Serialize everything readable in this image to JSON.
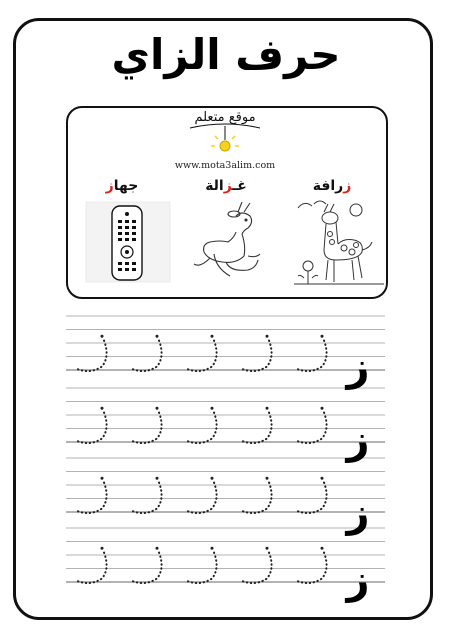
{
  "title": "حرف الزاي",
  "logo": {
    "text": "موقع متعلم",
    "icon": "lightbulb-icon",
    "url": "www.mota3alim.com"
  },
  "words": [
    {
      "name": "giraffe",
      "rest": "رافة",
      "letter": "ز",
      "image": "giraffe-drawing"
    },
    {
      "name": "gazelle",
      "before": "غـ",
      "letter": "ز",
      "after": "الة",
      "image": "gazelle-drawing"
    },
    {
      "name": "device",
      "before": "جها",
      "letter": "ز",
      "image": "remote-control-drawing"
    }
  ],
  "practice_letter": "ز",
  "practice_rows": 4,
  "trace_repeats": 5,
  "colors": {
    "highlight": "#e0221b",
    "ink": "#000000",
    "guide": "#9a9a9a"
  }
}
